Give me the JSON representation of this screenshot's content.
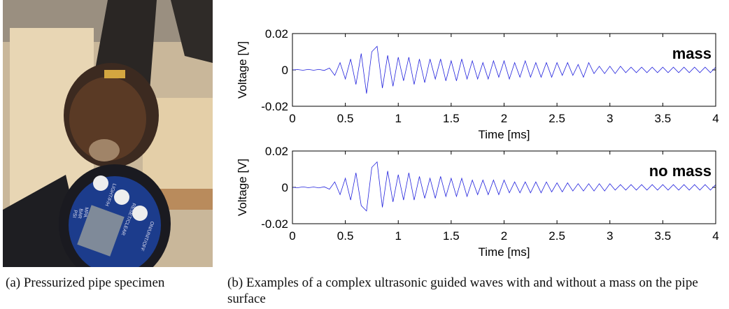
{
  "photo": {
    "labels": [
      "PSI",
      "BAR",
      "MPA",
      "ON/UNIT/OFF",
      "RESET/CLEAR",
      "LIGHT/F/H"
    ]
  },
  "captions": {
    "a": "(a) Pressurized pipe specimen",
    "b": "(b) Examples of a complex ultrasonic guided waves with and without a mass on the pipe surface"
  },
  "chart_data": [
    {
      "type": "line",
      "annotation": "mass",
      "x_label": "Time [ms]",
      "y_label": "Voltage [V]",
      "xlim": [
        0,
        4
      ],
      "ylim": [
        -0.02,
        0.02
      ],
      "xticks": [
        0,
        0.5,
        1,
        1.5,
        2,
        2.5,
        3,
        3.5,
        4
      ],
      "yticks": [
        -0.02,
        0,
        0.02
      ],
      "color": "#2222dd",
      "x": [
        0,
        0.05,
        0.1,
        0.15,
        0.2,
        0.25,
        0.3,
        0.35,
        0.4,
        0.45,
        0.5,
        0.55,
        0.6,
        0.65,
        0.7,
        0.75,
        0.8,
        0.85,
        0.9,
        0.95,
        1,
        1.05,
        1.1,
        1.15,
        1.2,
        1.25,
        1.3,
        1.35,
        1.4,
        1.45,
        1.5,
        1.55,
        1.6,
        1.65,
        1.7,
        1.75,
        1.8,
        1.85,
        1.9,
        1.95,
        2,
        2.05,
        2.1,
        2.15,
        2.2,
        2.25,
        2.3,
        2.35,
        2.4,
        2.45,
        2.5,
        2.55,
        2.6,
        2.65,
        2.7,
        2.75,
        2.8,
        2.85,
        2.9,
        2.95,
        3,
        3.05,
        3.1,
        3.15,
        3.2,
        3.25,
        3.3,
        3.35,
        3.4,
        3.45,
        3.5,
        3.55,
        3.6,
        3.65,
        3.7,
        3.75,
        3.8,
        3.85,
        3.9,
        3.95,
        4
      ],
      "values": [
        0,
        0.0002,
        -0.0002,
        0.0003,
        -0.0002,
        0.0003,
        -0.0003,
        0.001,
        -0.003,
        0.004,
        -0.005,
        0.006,
        -0.008,
        0.009,
        -0.013,
        0.01,
        0.013,
        -0.01,
        0.008,
        -0.009,
        0.007,
        -0.006,
        0.007,
        -0.008,
        0.006,
        -0.007,
        0.006,
        -0.005,
        0.006,
        -0.006,
        0.005,
        -0.006,
        0.006,
        -0.005,
        0.005,
        -0.005,
        0.004,
        -0.005,
        0.005,
        -0.004,
        0.005,
        -0.005,
        0.004,
        -0.004,
        0.005,
        -0.004,
        0.004,
        -0.004,
        0.004,
        -0.004,
        0.004,
        -0.003,
        0.004,
        -0.003,
        0.003,
        -0.004,
        0.004,
        -0.002,
        0.002,
        -0.002,
        0.002,
        -0.002,
        0.002,
        -0.0015,
        0.0015,
        -0.0015,
        0.0015,
        -0.0015,
        0.0015,
        -0.0015,
        0.0015,
        -0.0015,
        0.0015,
        -0.0015,
        0.0015,
        -0.0015,
        0.0015,
        -0.0015,
        0.0015,
        -0.0015,
        0.0015
      ]
    },
    {
      "type": "line",
      "annotation": "no mass",
      "x_label": "Time [ms]",
      "y_label": "Voltage [V]",
      "xlim": [
        0,
        4
      ],
      "ylim": [
        -0.02,
        0.02
      ],
      "xticks": [
        0,
        0.5,
        1,
        1.5,
        2,
        2.5,
        3,
        3.5,
        4
      ],
      "yticks": [
        -0.02,
        0,
        0.02
      ],
      "color": "#2222dd",
      "x": [
        0,
        0.05,
        0.1,
        0.15,
        0.2,
        0.25,
        0.3,
        0.35,
        0.4,
        0.45,
        0.5,
        0.55,
        0.6,
        0.65,
        0.7,
        0.75,
        0.8,
        0.85,
        0.9,
        0.95,
        1,
        1.05,
        1.1,
        1.15,
        1.2,
        1.25,
        1.3,
        1.35,
        1.4,
        1.45,
        1.5,
        1.55,
        1.6,
        1.65,
        1.7,
        1.75,
        1.8,
        1.85,
        1.9,
        1.95,
        2,
        2.05,
        2.1,
        2.15,
        2.2,
        2.25,
        2.3,
        2.35,
        2.4,
        2.45,
        2.5,
        2.55,
        2.6,
        2.65,
        2.7,
        2.75,
        2.8,
        2.85,
        2.9,
        2.95,
        3,
        3.05,
        3.1,
        3.15,
        3.2,
        3.25,
        3.3,
        3.35,
        3.4,
        3.45,
        3.5,
        3.55,
        3.6,
        3.65,
        3.7,
        3.75,
        3.8,
        3.85,
        3.9,
        3.95,
        4
      ],
      "values": [
        0,
        -0.0002,
        0.0003,
        -0.0002,
        0.0002,
        -0.0003,
        0.0003,
        -0.001,
        0.003,
        -0.004,
        0.005,
        -0.007,
        0.008,
        -0.01,
        -0.013,
        0.011,
        0.014,
        -0.011,
        0.009,
        -0.008,
        0.007,
        -0.007,
        0.008,
        -0.007,
        0.006,
        -0.006,
        0.005,
        -0.006,
        0.006,
        -0.005,
        0.005,
        -0.005,
        0.005,
        -0.005,
        0.004,
        -0.004,
        0.004,
        -0.004,
        0.004,
        -0.004,
        0.004,
        -0.003,
        0.003,
        -0.003,
        0.003,
        -0.003,
        0.003,
        -0.003,
        0.003,
        -0.0025,
        0.0025,
        -0.0025,
        0.0025,
        -0.002,
        0.002,
        -0.002,
        0.002,
        -0.002,
        0.002,
        -0.002,
        0.002,
        -0.0015,
        0.0015,
        -0.0015,
        0.0015,
        -0.0015,
        0.0015,
        -0.0015,
        0.0015,
        -0.0015,
        0.0015,
        -0.0015,
        0.0015,
        -0.0015,
        0.0015,
        -0.0015,
        0.0015,
        -0.0015,
        0.0015,
        -0.0015,
        0.0015
      ]
    }
  ]
}
